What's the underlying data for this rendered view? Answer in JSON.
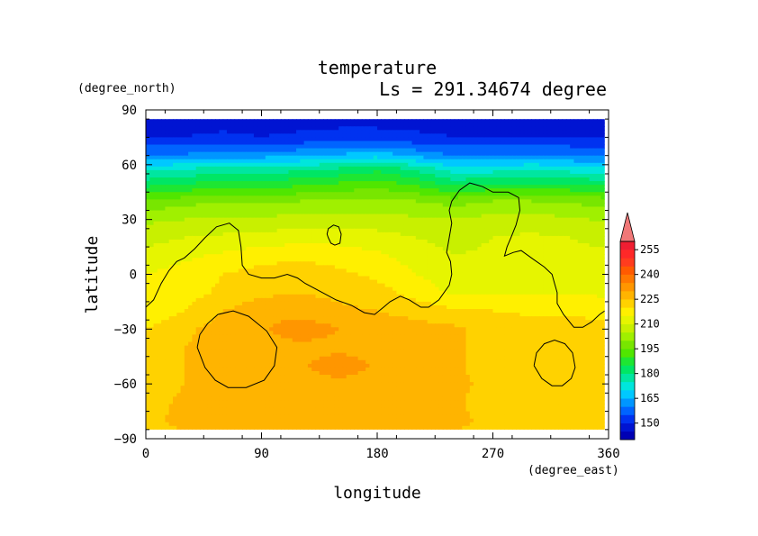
{
  "chart_data": {
    "type": "heatmap",
    "title": "temperature",
    "subtitle": "Ls = 291.34674 degree",
    "xlabel": "longitude",
    "ylabel": "latitude",
    "x_units": "(degree_east)",
    "y_units": "(degree_north)",
    "xlim": [
      0,
      360
    ],
    "ylim": [
      -90,
      90
    ],
    "x_ticks": [
      "0",
      "90",
      "180",
      "270",
      "360"
    ],
    "x_tick_values": [
      0,
      90,
      180,
      270,
      360
    ],
    "y_ticks": [
      "90",
      "60",
      "30",
      "0",
      "−30",
      "−60",
      "−90"
    ],
    "y_tick_values": [
      90,
      60,
      30,
      0,
      -30,
      -60,
      -90
    ],
    "data_lat_range": [
      -85,
      85
    ],
    "colorbar": {
      "levels": [
        140,
        145,
        150,
        155,
        160,
        165,
        170,
        175,
        180,
        185,
        190,
        195,
        200,
        205,
        210,
        215,
        220,
        225,
        230,
        235,
        240,
        245,
        250,
        255,
        260
      ],
      "labels": [
        "150",
        "165",
        "180",
        "195",
        "210",
        "225",
        "240",
        "255"
      ],
      "label_values": [
        150,
        165,
        180,
        195,
        210,
        225,
        240,
        255
      ],
      "colors": [
        "#0000b4",
        "#0014d2",
        "#0032f0",
        "#0064ff",
        "#0096ff",
        "#00c8ff",
        "#00e6dc",
        "#00e6a0",
        "#00e664",
        "#1ee632",
        "#50e600",
        "#78e600",
        "#a0f000",
        "#c8f000",
        "#e6f500",
        "#fff000",
        "#ffd200",
        "#ffb400",
        "#ff9600",
        "#ff7800",
        "#ff5a00",
        "#ff3c1e",
        "#ff2828",
        "#f01e32"
      ],
      "extend_max_color": "#f07878"
    },
    "temperature_rows": [
      {
        "lat": 85,
        "values": [
          148,
          148,
          148,
          148,
          148,
          148,
          148,
          148,
          148,
          148,
          148,
          148,
          148
        ]
      },
      {
        "lat": 75,
        "values": [
          150,
          150,
          151,
          150,
          151,
          152,
          152,
          151,
          150,
          150,
          150,
          150,
          150
        ]
      },
      {
        "lat": 65,
        "values": [
          160,
          161,
          163,
          163,
          164,
          166,
          168,
          164,
          160,
          160,
          161,
          160,
          158
        ]
      },
      {
        "lat": 58,
        "values": [
          173,
          174,
          177,
          176,
          178,
          180,
          183,
          178,
          172,
          172,
          174,
          172,
          170
        ]
      },
      {
        "lat": 50,
        "values": [
          182,
          184,
          187,
          186,
          188,
          190,
          192,
          188,
          182,
          184,
          185,
          184,
          182
        ]
      },
      {
        "lat": 40,
        "values": [
          196,
          198,
          200,
          199,
          200,
          201,
          202,
          200,
          198,
          200,
          200,
          199,
          198
        ]
      },
      {
        "lat": 30,
        "values": [
          204,
          205,
          206,
          206,
          207,
          207,
          207,
          206,
          205,
          207,
          207,
          206,
          204
        ]
      },
      {
        "lat": 20,
        "values": [
          208,
          210,
          211,
          212,
          213,
          213,
          212,
          210,
          208,
          210,
          211,
          210,
          208
        ]
      },
      {
        "lat": 10,
        "values": [
          212,
          214,
          216,
          218,
          219,
          218,
          216,
          213,
          210,
          211,
          212,
          212,
          211
        ]
      },
      {
        "lat": 0,
        "values": [
          215,
          217,
          220,
          222,
          223,
          221,
          219,
          215,
          212,
          212,
          213,
          213,
          213
        ]
      },
      {
        "lat": -10,
        "values": [
          216,
          218,
          221,
          224,
          225,
          224,
          222,
          218,
          214,
          214,
          214,
          215,
          214
        ]
      },
      {
        "lat": -20,
        "values": [
          216,
          220,
          225,
          228,
          227,
          226,
          225,
          223,
          221,
          220,
          219,
          219,
          217
        ]
      },
      {
        "lat": -30,
        "values": [
          220,
          224,
          227,
          229,
          234,
          230,
          228,
          227,
          226,
          222,
          223,
          223,
          222
        ]
      },
      {
        "lat": -40,
        "values": [
          221,
          225,
          227,
          228,
          228,
          228,
          227,
          227,
          226,
          222,
          223,
          224,
          223
        ]
      },
      {
        "lat": -50,
        "values": [
          222,
          225,
          227,
          227,
          229,
          234,
          229,
          228,
          226,
          222,
          222,
          223,
          222
        ]
      },
      {
        "lat": -60,
        "values": [
          221,
          225,
          227,
          227,
          228,
          228,
          227,
          227,
          226,
          224,
          223,
          223,
          222
        ]
      },
      {
        "lat": -70,
        "values": [
          223,
          226,
          227,
          227,
          227,
          227,
          227,
          226,
          226,
          222,
          223,
          223,
          222
        ]
      },
      {
        "lat": -80,
        "values": [
          224,
          226,
          226,
          226,
          227,
          227,
          227,
          226,
          226,
          224,
          224,
          223,
          223
        ]
      },
      {
        "lat": -85,
        "values": [
          224,
          225,
          225,
          225,
          226,
          226,
          226,
          226,
          225,
          224,
          224,
          224,
          223
        ]
      }
    ],
    "row_lons": [
      0,
      30,
      60,
      90,
      120,
      150,
      180,
      210,
      240,
      270,
      300,
      330,
      360
    ],
    "topography_contours": [
      {
        "name": "main-coastline",
        "points": [
          [
            0,
            -18
          ],
          [
            6,
            -14
          ],
          [
            12,
            -5
          ],
          [
            18,
            2
          ],
          [
            24,
            7
          ],
          [
            30,
            9
          ],
          [
            38,
            14
          ],
          [
            46,
            20
          ],
          [
            55,
            26
          ],
          [
            65,
            28
          ],
          [
            72,
            24
          ],
          [
            74,
            15
          ],
          [
            75,
            5
          ],
          [
            80,
            0
          ],
          [
            90,
            -2
          ],
          [
            100,
            -2
          ],
          [
            110,
            0
          ],
          [
            118,
            -2
          ],
          [
            124,
            -5
          ],
          [
            132,
            -8
          ],
          [
            148,
            -14
          ],
          [
            160,
            -17
          ],
          [
            170,
            -21
          ],
          [
            178,
            -22
          ],
          [
            185,
            -18
          ],
          [
            190,
            -15
          ],
          [
            198,
            -12
          ],
          [
            205,
            -14
          ],
          [
            214,
            -18
          ],
          [
            220,
            -18
          ],
          [
            228,
            -14
          ],
          [
            236,
            -6
          ],
          [
            238,
            0
          ],
          [
            237,
            7
          ],
          [
            234,
            12
          ],
          [
            236,
            20
          ],
          [
            238,
            28
          ],
          [
            236,
            35
          ],
          [
            238,
            40
          ],
          [
            244,
            46
          ],
          [
            252,
            50
          ],
          [
            262,
            48
          ],
          [
            270,
            45
          ],
          [
            282,
            45
          ],
          [
            290,
            42
          ],
          [
            291,
            35
          ],
          [
            288,
            27
          ],
          [
            284,
            20
          ],
          [
            281,
            15
          ],
          [
            279,
            10
          ],
          [
            286,
            12
          ],
          [
            292,
            13
          ],
          [
            300,
            9
          ],
          [
            310,
            4
          ],
          [
            316,
            0
          ],
          [
            318,
            -5
          ],
          [
            320,
            -10
          ],
          [
            320,
            -16
          ],
          [
            325,
            -22
          ],
          [
            333,
            -29
          ],
          [
            340,
            -29
          ],
          [
            347,
            -26
          ],
          [
            353,
            -22
          ],
          [
            357,
            -20
          ]
        ]
      },
      {
        "name": "island-contour",
        "points": [
          [
            142,
            20
          ],
          [
            141,
            22
          ],
          [
            142,
            25
          ],
          [
            146,
            27
          ],
          [
            150,
            26
          ],
          [
            152,
            22
          ],
          [
            151,
            17
          ],
          [
            147,
            16
          ],
          [
            144,
            17
          ],
          [
            142,
            20
          ]
        ]
      },
      {
        "name": "crater-hellas",
        "points": [
          [
            40,
            -40
          ],
          [
            42,
            -33
          ],
          [
            48,
            -27
          ],
          [
            56,
            -22
          ],
          [
            68,
            -20
          ],
          [
            80,
            -23
          ],
          [
            94,
            -31
          ],
          [
            102,
            -40
          ],
          [
            100,
            -50
          ],
          [
            92,
            -58
          ],
          [
            78,
            -62
          ],
          [
            64,
            -62
          ],
          [
            54,
            -58
          ],
          [
            46,
            -51
          ],
          [
            40,
            -40
          ]
        ]
      },
      {
        "name": "crater-argyre",
        "points": [
          [
            302,
            -50
          ],
          [
            304,
            -43
          ],
          [
            310,
            -38
          ],
          [
            318,
            -36
          ],
          [
            326,
            -38
          ],
          [
            332,
            -43
          ],
          [
            334,
            -51
          ],
          [
            331,
            -57
          ],
          [
            324,
            -61
          ],
          [
            316,
            -61
          ],
          [
            308,
            -57
          ],
          [
            302,
            -50
          ]
        ]
      }
    ]
  }
}
